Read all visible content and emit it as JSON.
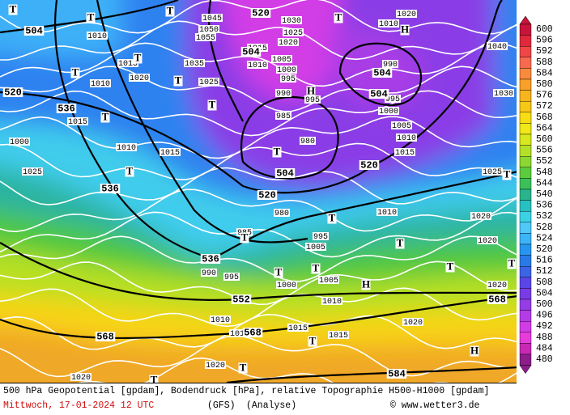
{
  "map": {
    "legend": {
      "labels": [
        600,
        596,
        592,
        588,
        584,
        580,
        576,
        572,
        568,
        564,
        560,
        556,
        552,
        548,
        544,
        540,
        536,
        532,
        528,
        524,
        520,
        516,
        512,
        508,
        504,
        500,
        496,
        492,
        488,
        484,
        480
      ],
      "colors": [
        "#c8143c",
        "#e0283c",
        "#f04646",
        "#f86a50",
        "#fa8a3c",
        "#f8a028",
        "#f8b41e",
        "#f8c818",
        "#f8dc14",
        "#f0e818",
        "#d8e81e",
        "#b4e028",
        "#8cd832",
        "#5ccc3c",
        "#3cc05a",
        "#28b48c",
        "#28c0c0",
        "#3cd2e6",
        "#50c8f8",
        "#3cb4f8",
        "#2896f0",
        "#287ae6",
        "#3c64e6",
        "#5a46e6",
        "#783ce6",
        "#963ce6",
        "#b43ce6",
        "#d23ce6",
        "#e63cdc",
        "#c828b4",
        "#8c1e8c"
      ]
    },
    "geopotential_labels": [
      "504",
      "520",
      "504",
      "504",
      "504",
      "520",
      "536",
      "504",
      "520",
      "520",
      "536",
      "536",
      "552",
      "568",
      "568",
      "568",
      "584"
    ],
    "pressure_labels": [
      "1010",
      "1015",
      "1020",
      "1010",
      "1015",
      "1000",
      "1010",
      "1025",
      "1015",
      "1035",
      "1025",
      "1045",
      "1050",
      "1055",
      "1015",
      "1010",
      "1005",
      "1000",
      "995",
      "990",
      "985",
      "980",
      "995",
      "1000",
      "1005",
      "1010",
      "1015",
      "1020",
      "1010",
      "1030",
      "1025",
      "1020",
      "990",
      "1030",
      "1040",
      "1025",
      "1020",
      "1020",
      "1020",
      "1010",
      "985",
      "995",
      "1005",
      "990",
      "995",
      "1000",
      "1005",
      "1010",
      "1015",
      "1010",
      "1010",
      "1015",
      "1020",
      "1020",
      "1020",
      "995",
      "980"
    ],
    "pressure_centers": [
      "T",
      "T",
      "T",
      "T",
      "H",
      "T",
      "H",
      "T",
      "T",
      "T",
      "T",
      "T",
      "T",
      "T",
      "T",
      "T",
      "H",
      "T",
      "T",
      "H",
      "T",
      "T",
      "T",
      "T",
      "T",
      "T"
    ]
  },
  "footer": {
    "description": "500 hPa Geopotential [gpdam], Bodendruck [hPa], relative Topographie H500-H1000 [gpdam]",
    "date": "Mittwoch, 17-01-2024  12 UTC",
    "model": "(GFS)",
    "mode": "(Analyse)",
    "credit": "© www.wetter3.de"
  }
}
